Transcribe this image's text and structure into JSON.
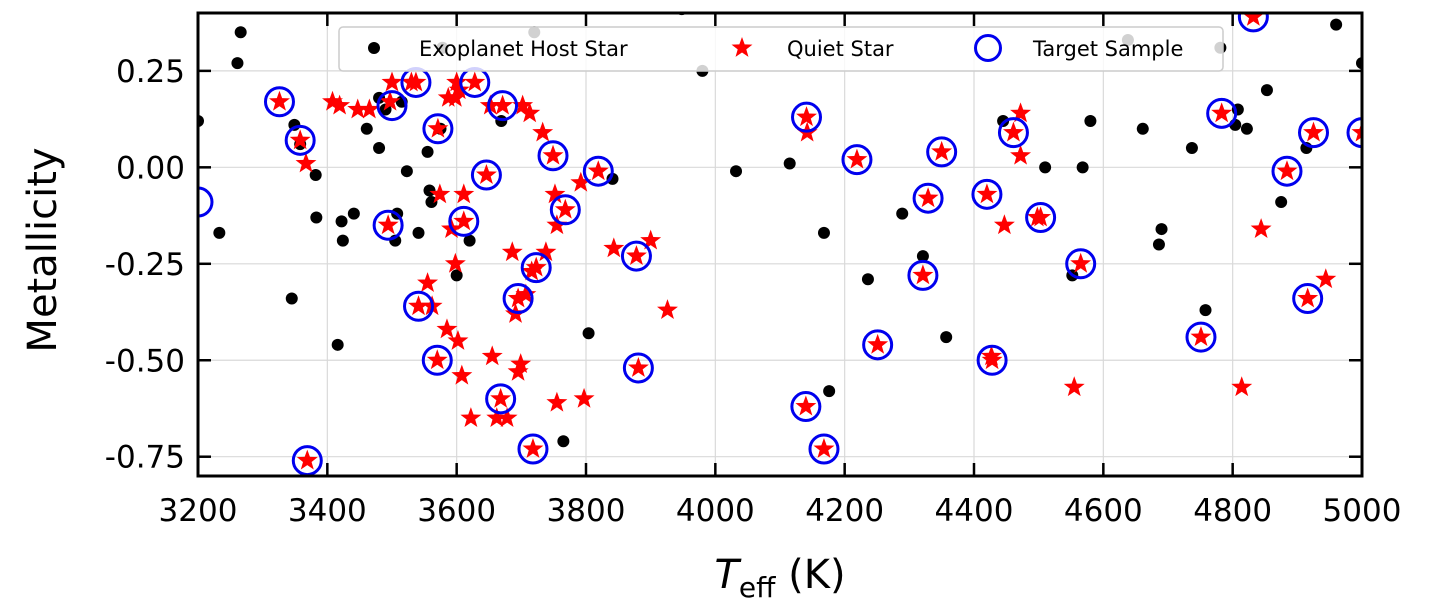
{
  "chart_data": {
    "type": "scatter",
    "title": "",
    "xlabel_main": "T",
    "xlabel_sub": "eff",
    "xlabel_unit": " (K)",
    "ylabel": "Metallicity",
    "xlim": [
      3200,
      5000
    ],
    "ylim": [
      -0.8,
      0.4
    ],
    "xticks": [
      3200,
      3400,
      3600,
      3800,
      4000,
      4200,
      4400,
      4600,
      4800,
      5000
    ],
    "yticks": [
      0.25,
      0.0,
      -0.25,
      -0.5,
      -0.75
    ],
    "ytick_labels": [
      "0.25",
      "0.00",
      "-0.25",
      "-0.50",
      "-0.75"
    ],
    "grid": true,
    "legend_position": "top-center",
    "colors": {
      "host": "#000000",
      "quiet": "#ff0000",
      "target": "#0000ee"
    },
    "series": [
      {
        "name": "Exoplanet Host Star",
        "marker": "dot",
        "points": [
          [
            3200,
            0.12
          ],
          [
            3233,
            -0.17
          ],
          [
            3261,
            0.27
          ],
          [
            3266,
            0.35
          ],
          [
            3345,
            -0.34
          ],
          [
            3349,
            0.11
          ],
          [
            3358,
            0.06
          ],
          [
            3382,
            -0.02
          ],
          [
            3383,
            -0.13
          ],
          [
            3416,
            -0.46
          ],
          [
            3422,
            -0.14
          ],
          [
            3424,
            -0.19
          ],
          [
            3441,
            -0.12
          ],
          [
            3461,
            0.1
          ],
          [
            3480,
            0.05
          ],
          [
            3480,
            0.18
          ],
          [
            3490,
            0.15
          ],
          [
            3505,
            -0.19
          ],
          [
            3508,
            -0.12
          ],
          [
            3515,
            0.17
          ],
          [
            3523,
            -0.01
          ],
          [
            3541,
            -0.17
          ],
          [
            3555,
            0.04
          ],
          [
            3558,
            -0.06
          ],
          [
            3561,
            -0.09
          ],
          [
            3575,
            0.1
          ],
          [
            3578,
            0.31
          ],
          [
            3600,
            -0.28
          ],
          [
            3620,
            -0.19
          ],
          [
            3669,
            0.12
          ],
          [
            3720,
            0.35
          ],
          [
            3765,
            -0.71
          ],
          [
            3804,
            -0.43
          ],
          [
            3841,
            -0.03
          ],
          [
            3948,
            0.41
          ],
          [
            3980,
            0.25
          ],
          [
            4032,
            -0.01
          ],
          [
            4115,
            0.01
          ],
          [
            4168,
            -0.17
          ],
          [
            4176,
            -0.58
          ],
          [
            4236,
            -0.29
          ],
          [
            4289,
            -0.12
          ],
          [
            4321,
            -0.23
          ],
          [
            4357,
            -0.44
          ],
          [
            4445,
            0.12
          ],
          [
            4510,
            -0.0
          ],
          [
            4552,
            -0.28
          ],
          [
            4568,
            -0.0
          ],
          [
            4580,
            0.12
          ],
          [
            4638,
            0.33
          ],
          [
            4661,
            0.1
          ],
          [
            4686,
            -0.2
          ],
          [
            4690,
            -0.16
          ],
          [
            4737,
            0.05
          ],
          [
            4758,
            -0.37
          ],
          [
            4781,
            0.31
          ],
          [
            4804,
            0.11
          ],
          [
            4808,
            0.15
          ],
          [
            4822,
            0.1
          ],
          [
            4853,
            0.2
          ],
          [
            4875,
            -0.09
          ],
          [
            4914,
            0.05
          ],
          [
            4960,
            0.37
          ],
          [
            5000,
            0.27
          ]
        ]
      },
      {
        "name": "Quiet Star",
        "marker": "star",
        "points": [
          [
            3326,
            0.17
          ],
          [
            3358,
            0.07
          ],
          [
            3367,
            0.01
          ],
          [
            3369,
            -0.76
          ],
          [
            3408,
            0.17
          ],
          [
            3419,
            0.16
          ],
          [
            3447,
            0.15
          ],
          [
            3465,
            0.15
          ],
          [
            3494,
            -0.15
          ],
          [
            3497,
            0.17
          ],
          [
            3500,
            0.22
          ],
          [
            3530,
            0.22
          ],
          [
            3537,
            0.22
          ],
          [
            3541,
            -0.36
          ],
          [
            3555,
            -0.3
          ],
          [
            3562,
            -0.36
          ],
          [
            3570,
            -0.5
          ],
          [
            3571,
            0.1
          ],
          [
            3574,
            -0.07
          ],
          [
            3585,
            -0.42
          ],
          [
            3587,
            0.18
          ],
          [
            3592,
            -0.16
          ],
          [
            3598,
            0.18
          ],
          [
            3598,
            -0.25
          ],
          [
            3600,
            0.22
          ],
          [
            3602,
            -0.45
          ],
          [
            3604,
            0.2
          ],
          [
            3608,
            -0.54
          ],
          [
            3611,
            -0.07
          ],
          [
            3611,
            -0.14
          ],
          [
            3622,
            -0.65
          ],
          [
            3628,
            0.22
          ],
          [
            3646,
            -0.02
          ],
          [
            3652,
            0.16
          ],
          [
            3655,
            -0.49
          ],
          [
            3662,
            -0.65
          ],
          [
            3668,
            -0.6
          ],
          [
            3671,
            0.16
          ],
          [
            3678,
            -0.65
          ],
          [
            3686,
            -0.22
          ],
          [
            3691,
            -0.38
          ],
          [
            3695,
            -0.34
          ],
          [
            3695,
            -0.53
          ],
          [
            3699,
            -0.51
          ],
          [
            3702,
            0.16
          ],
          [
            3707,
            -0.33
          ],
          [
            3713,
            0.14
          ],
          [
            3716,
            -0.27
          ],
          [
            3718,
            -0.73
          ],
          [
            3723,
            -0.26
          ],
          [
            3733,
            0.09
          ],
          [
            3738,
            -0.22
          ],
          [
            3749,
            0.03
          ],
          [
            3752,
            -0.07
          ],
          [
            3755,
            -0.15
          ],
          [
            3755,
            -0.61
          ],
          [
            3768,
            -0.11
          ],
          [
            3792,
            -0.04
          ],
          [
            3797,
            -0.6
          ],
          [
            3819,
            -0.01
          ],
          [
            3843,
            -0.21
          ],
          [
            3878,
            -0.23
          ],
          [
            3881,
            -0.52
          ],
          [
            3900,
            -0.19
          ],
          [
            3926,
            -0.37
          ],
          [
            4140,
            -0.62
          ],
          [
            4141,
            0.13
          ],
          [
            4142,
            0.09
          ],
          [
            4168,
            -0.73
          ],
          [
            4219,
            0.02
          ],
          [
            4251,
            -0.46
          ],
          [
            4321,
            -0.28
          ],
          [
            4329,
            -0.08
          ],
          [
            4350,
            0.04
          ],
          [
            4420,
            -0.07
          ],
          [
            4427,
            -0.49
          ],
          [
            4428,
            -0.5
          ],
          [
            4447,
            -0.15
          ],
          [
            4461,
            0.09
          ],
          [
            4472,
            0.14
          ],
          [
            4472,
            0.03
          ],
          [
            4498,
            -0.13
          ],
          [
            4503,
            -0.13
          ],
          [
            4555,
            -0.57
          ],
          [
            4565,
            -0.25
          ],
          [
            4751,
            -0.44
          ],
          [
            4783,
            0.14
          ],
          [
            4814,
            -0.57
          ],
          [
            4832,
            0.39
          ],
          [
            4844,
            -0.16
          ],
          [
            4884,
            -0.01
          ],
          [
            4916,
            -0.34
          ],
          [
            4925,
            0.09
          ],
          [
            4944,
            -0.29
          ],
          [
            5000,
            0.09
          ]
        ]
      },
      {
        "name": "Target Sample",
        "marker": "circle",
        "points": [
          [
            3200,
            -0.09
          ],
          [
            3326,
            0.17
          ],
          [
            3358,
            0.07
          ],
          [
            3369,
            -0.76
          ],
          [
            3494,
            -0.15
          ],
          [
            3500,
            0.16
          ],
          [
            3537,
            0.22
          ],
          [
            3541,
            -0.36
          ],
          [
            3570,
            -0.5
          ],
          [
            3571,
            0.1
          ],
          [
            3611,
            -0.14
          ],
          [
            3628,
            0.22
          ],
          [
            3646,
            -0.02
          ],
          [
            3671,
            0.16
          ],
          [
            3668,
            -0.6
          ],
          [
            3695,
            -0.34
          ],
          [
            3718,
            -0.73
          ],
          [
            3723,
            -0.26
          ],
          [
            3749,
            0.03
          ],
          [
            3768,
            -0.11
          ],
          [
            3819,
            -0.01
          ],
          [
            3878,
            -0.23
          ],
          [
            3881,
            -0.52
          ],
          [
            4140,
            -0.62
          ],
          [
            4141,
            0.13
          ],
          [
            4168,
            -0.73
          ],
          [
            4219,
            0.02
          ],
          [
            4251,
            -0.46
          ],
          [
            4321,
            -0.28
          ],
          [
            4329,
            -0.08
          ],
          [
            4350,
            0.04
          ],
          [
            4420,
            -0.07
          ],
          [
            4428,
            -0.5
          ],
          [
            4461,
            0.09
          ],
          [
            4503,
            -0.13
          ],
          [
            4565,
            -0.25
          ],
          [
            4751,
            -0.44
          ],
          [
            4783,
            0.14
          ],
          [
            4832,
            0.39
          ],
          [
            4884,
            -0.01
          ],
          [
            4916,
            -0.34
          ],
          [
            4925,
            0.09
          ],
          [
            5000,
            0.09
          ]
        ]
      }
    ]
  }
}
